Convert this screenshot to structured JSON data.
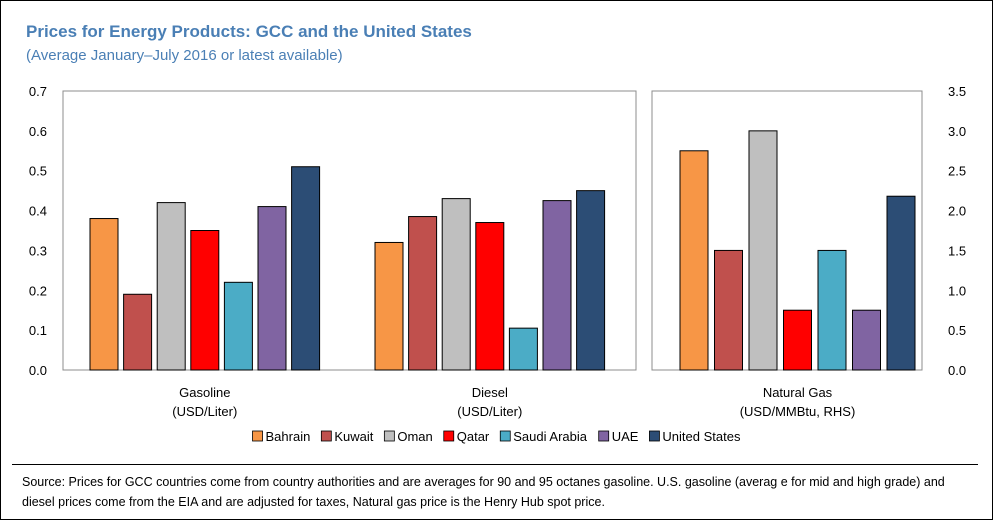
{
  "title": "Prices for Energy Products: GCC and the United States",
  "subtitle": "(Average January–July 2016 or latest available)",
  "source": "Source: Prices for GCC countries come from country authorities and are averages for 90 and 95 octanes gasoline. U.S. gasoline (averag e for mid and high grade) and diesel prices come from the EIA and are adjusted for taxes, Natural gas price is the Henry Hub spot price.",
  "chart_data": {
    "type": "bar",
    "title": "Prices for Energy Products: GCC and the United States",
    "subtitle": "(Average January–July 2016 or latest available)",
    "legend_position": "bottom",
    "grid": false,
    "series": [
      {
        "name": "Bahrain",
        "color": "#f79646"
      },
      {
        "name": "Kuwait",
        "color": "#c0504d"
      },
      {
        "name": "Oman",
        "color": "#bfbfbf"
      },
      {
        "name": "Qatar",
        "color": "#ff0000"
      },
      {
        "name": "Saudi Arabia",
        "color": "#4bacc6"
      },
      {
        "name": "UAE",
        "color": "#8064a2"
      },
      {
        "name": "United States",
        "color": "#2c4d75"
      }
    ],
    "left_axis": {
      "ylim": [
        0,
        0.7
      ],
      "ticks": [
        "0.0",
        "0.1",
        "0.2",
        "0.3",
        "0.4",
        "0.5",
        "0.6",
        "0.7"
      ]
    },
    "right_axis": {
      "ylim": [
        0,
        3.5
      ],
      "ticks": [
        "0.0",
        "0.5",
        "1.0",
        "1.5",
        "2.0",
        "2.5",
        "3.0",
        "3.5"
      ]
    },
    "groups": [
      {
        "label1": "Gasoline",
        "label2": "(USD/Liter)",
        "axis": "left",
        "values": [
          0.38,
          0.19,
          0.42,
          0.35,
          0.22,
          0.41,
          0.51
        ]
      },
      {
        "label1": "Diesel",
        "label2": "(USD/Liter)",
        "axis": "left",
        "values": [
          0.32,
          0.385,
          0.43,
          0.37,
          0.105,
          0.425,
          0.45
        ]
      },
      {
        "label1": "Natural Gas",
        "label2": "(USD/MMBtu, RHS)",
        "axis": "right",
        "values": [
          2.75,
          1.5,
          3.0,
          0.75,
          1.5,
          0.75,
          2.18
        ]
      }
    ]
  }
}
